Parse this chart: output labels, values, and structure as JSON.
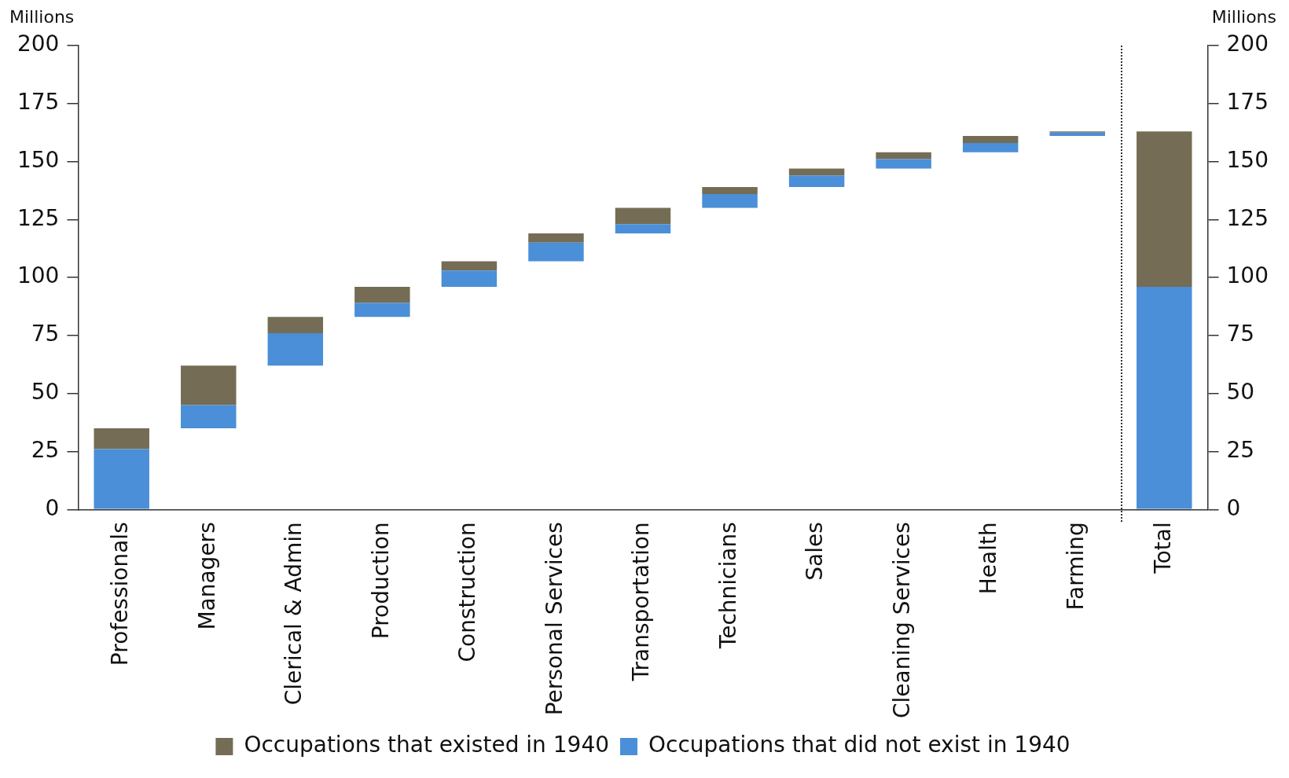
{
  "chart_data": {
    "type": "bar",
    "ylabel": "Millions",
    "y2label": "Millions",
    "categories": [
      "Professionals",
      "Managers",
      "Clerical & Admin",
      "Production",
      "Construction",
      "Personal Services",
      "Transportation",
      "Technicians",
      "Sales",
      "Cleaning Services",
      "Health",
      "Farming",
      "Total"
    ],
    "series": [
      {
        "name": "Occupations that did not exist in 1940",
        "color": "#4a8fd8",
        "base": [
          0,
          35,
          62,
          83,
          96,
          107,
          119,
          130,
          139,
          147,
          154,
          161,
          0
        ],
        "values": [
          26,
          10,
          14,
          6,
          7,
          8,
          4,
          6,
          5,
          4,
          4,
          1.5,
          96
        ]
      },
      {
        "name": "Occupations that existed in 1940",
        "color": "#756c55",
        "base": [
          26,
          45,
          76,
          89,
          103,
          115,
          123,
          136,
          144,
          151,
          158,
          162.5,
          96
        ],
        "values": [
          9,
          17,
          7,
          7,
          4,
          4,
          7,
          3,
          3,
          3,
          3,
          0.5,
          67
        ]
      }
    ],
    "ylim": [
      0,
      200
    ],
    "yticks": [
      0,
      25,
      50,
      75,
      100,
      125,
      150,
      175,
      200
    ],
    "y2lim": [
      0,
      200
    ],
    "y2ticks": [
      0,
      25,
      50,
      75,
      100,
      125,
      150,
      175,
      200
    ],
    "grid": false,
    "legend": "bottom"
  }
}
